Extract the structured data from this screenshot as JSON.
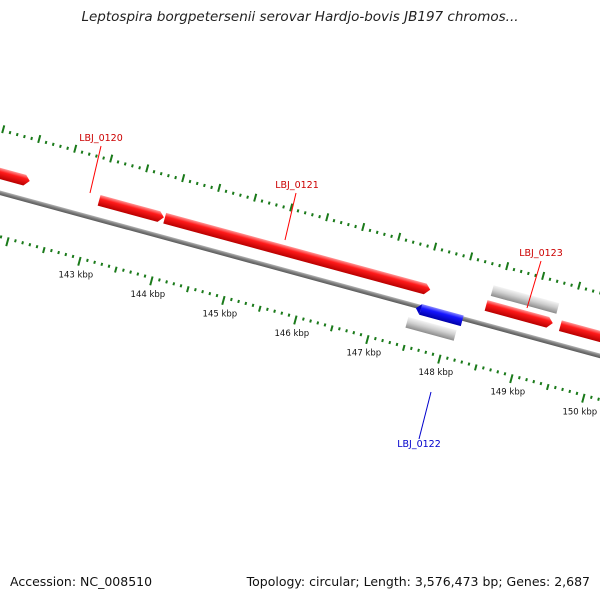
{
  "title": "Leptospira borgpetersenii serovar Hardjo-bovis JB197 chromos...",
  "colors": {
    "forward_gene": "#ff0000",
    "reverse_gene": "#0000ff",
    "rna_feature": "#c8c8c8",
    "backbone": "#808080",
    "tick": "#1a7a1a",
    "forward_label": "#cc0000",
    "reverse_label": "#0000cc"
  },
  "scale_labels": [
    "143 kbp",
    "144 kbp",
    "145 kbp",
    "146 kbp",
    "147 kbp",
    "148 kbp",
    "149 kbp",
    "150 kbp"
  ],
  "genes": [
    {
      "id": "LBJ_0120",
      "strand": "forward"
    },
    {
      "id": "LBJ_0121",
      "strand": "forward"
    },
    {
      "id": "LBJ_0122",
      "strand": "reverse"
    },
    {
      "id": "LBJ_0123",
      "strand": "forward"
    }
  ],
  "footer": {
    "accession": "Accession: NC_008510",
    "stats": "Topology: circular; Length: 3,576,473 bp; Genes: 2,687"
  }
}
